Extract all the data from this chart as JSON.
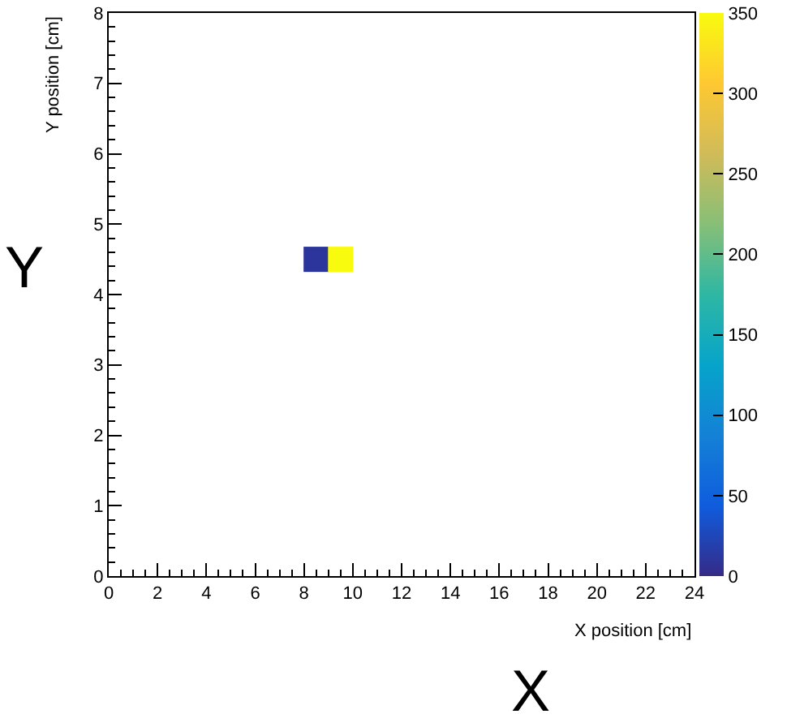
{
  "chart_data": {
    "type": "scatter",
    "xlabel": "X position [cm]",
    "ylabel": "Y position [cm]",
    "x": [
      8.5,
      9.5
    ],
    "values": [
      4.5,
      4.5
    ],
    "cvalues": [
      10,
      350
    ],
    "marker": "square",
    "xlim": [
      0,
      24
    ],
    "xticks": [
      0,
      2,
      4,
      6,
      8,
      10,
      12,
      14,
      16,
      18,
      20,
      22,
      24
    ],
    "ylim": [
      0,
      8
    ],
    "yticks": [
      0,
      1,
      2,
      3,
      4,
      5,
      6,
      7,
      8
    ],
    "clim": [
      0,
      350
    ],
    "cticks": [
      0,
      50,
      100,
      150,
      200,
      250,
      300,
      350
    ],
    "annotations": [
      "Y",
      "X"
    ],
    "grid": false
  }
}
